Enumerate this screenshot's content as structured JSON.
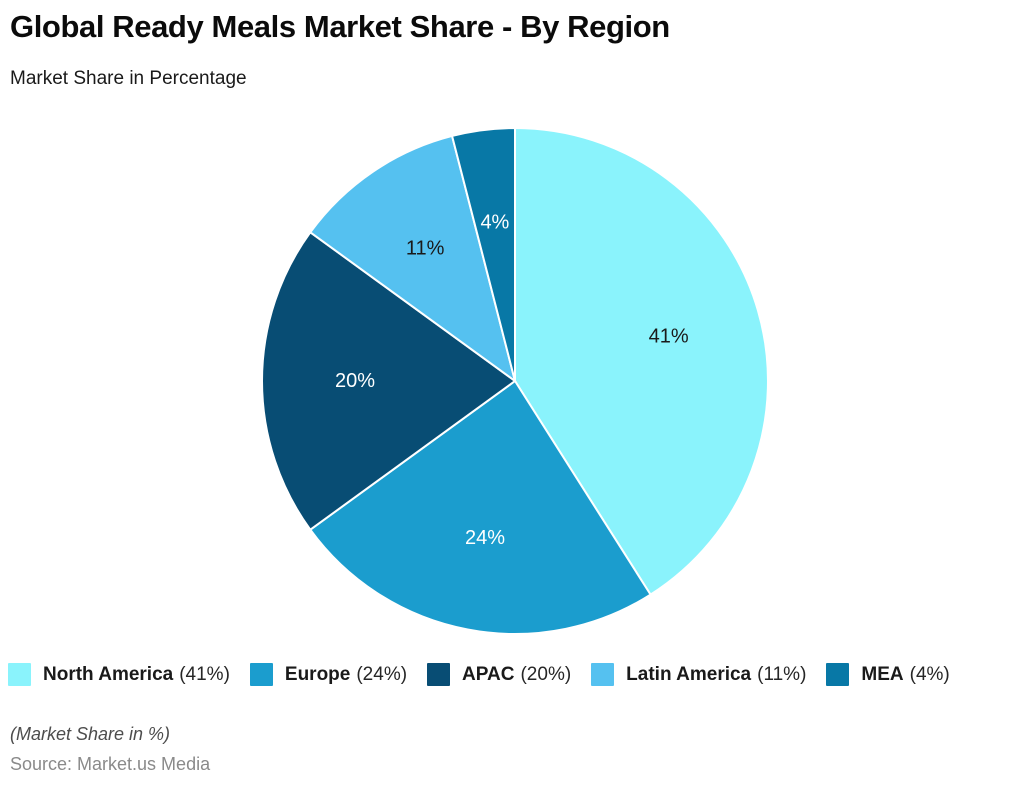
{
  "header": {
    "title": "Global Ready Meals Market Share - By Region",
    "subtitle": "Market Share in Percentage"
  },
  "chart_data": {
    "type": "pie",
    "title": "Global Ready Meals Market Share - By Region",
    "subtitle": "Market Share in Percentage",
    "unit": "%",
    "start_angle_deg": 0,
    "direction": "clockwise",
    "legend_position": "bottom",
    "slices": [
      {
        "label": "North America",
        "value": 41,
        "color": "#8AF3FC",
        "data_label": "41%",
        "data_label_color": "#1a1a1a"
      },
      {
        "label": "Europe",
        "value": 24,
        "color": "#1B9DCE",
        "data_label": "24%",
        "data_label_color": "#FFFFFF"
      },
      {
        "label": "APAC",
        "value": 20,
        "color": "#084D74",
        "data_label": "20%",
        "data_label_color": "#FFFFFF"
      },
      {
        "label": "Latin America",
        "value": 11,
        "color": "#55C1F0",
        "data_label": "11%",
        "data_label_color": "#1a1a1a"
      },
      {
        "label": "MEA",
        "value": 4,
        "color": "#0878A6",
        "data_label": "4%",
        "data_label_color": "#FFFFFF"
      }
    ]
  },
  "legend": {
    "items": [
      {
        "name": "North America",
        "share": "(41%)"
      },
      {
        "name": "Europe",
        "share": "(24%)"
      },
      {
        "name": "APAC",
        "share": "(20%)"
      },
      {
        "name": "Latin America",
        "share": "(11%)"
      },
      {
        "name": "MEA",
        "share": "(4%)"
      }
    ]
  },
  "footer": {
    "note": "(Market Share in %)",
    "source": "Source: Market.us Media"
  }
}
